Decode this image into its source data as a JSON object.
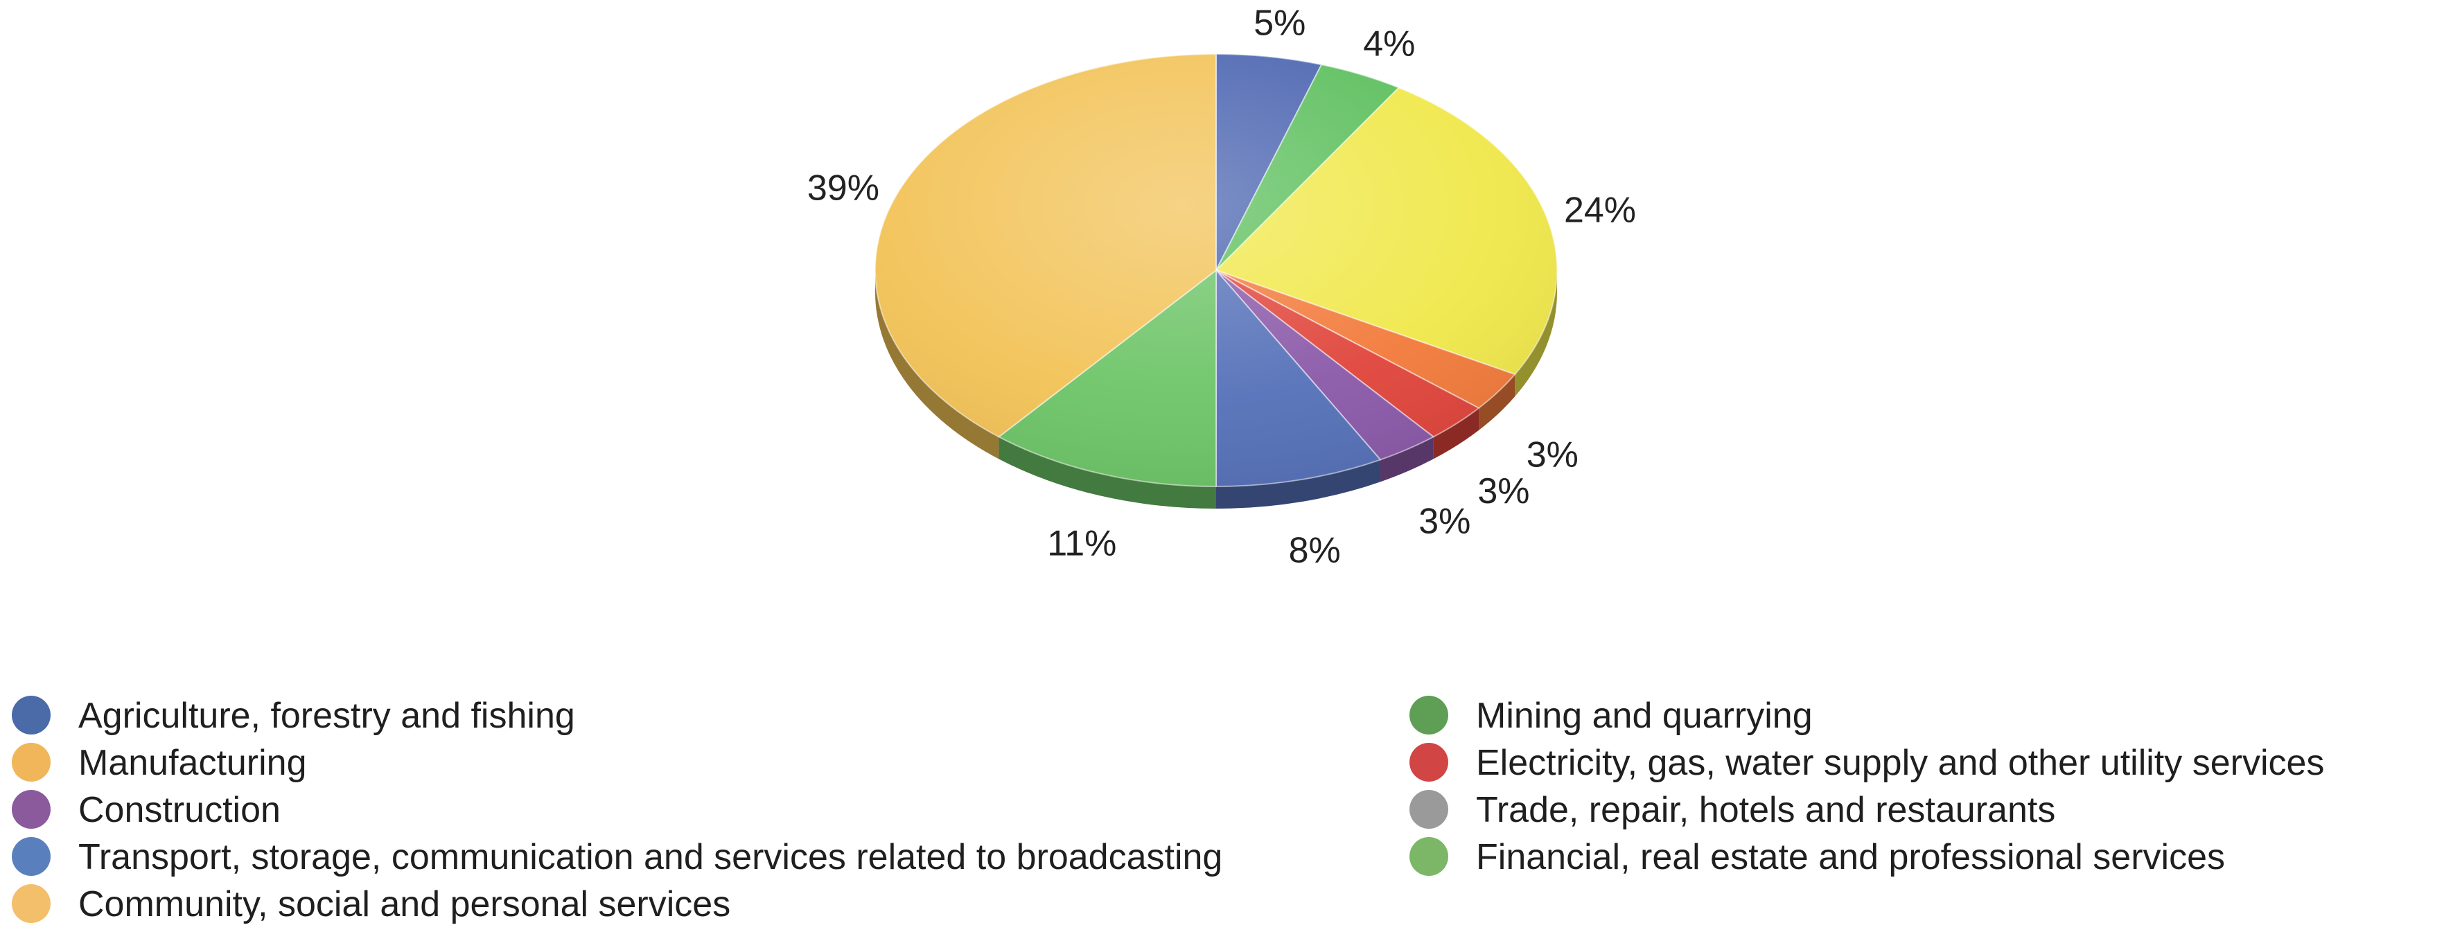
{
  "chart_data": {
    "type": "pie",
    "style": "3d",
    "title": "",
    "legend_placement": "bottom",
    "slices": [
      {
        "name": "Agriculture, forestry and fishing",
        "value": 5,
        "label": "5%",
        "color": "#4a64b0"
      },
      {
        "name": "Mining and quarrying",
        "value": 4,
        "label": "4%",
        "color": "#5cbf5c"
      },
      {
        "name": "Trade, repair, hotels and restaurants",
        "value": 24,
        "label": "24%",
        "color": "#f0e84a"
      },
      {
        "name": "Electricity, gas, water supply and other utility services",
        "value": 3,
        "label": "3%",
        "color": "#f27a3a"
      },
      {
        "name": "Electricity, gas, water supply and other utility services",
        "value": 3,
        "label": "3%",
        "color": "#e0443a"
      },
      {
        "name": "Construction",
        "value": 3,
        "label": "3%",
        "color": "#8a58a8"
      },
      {
        "name": "Transport, storage, communication and services related to broadcasting",
        "value": 8,
        "label": "8%",
        "color": "#5470b8"
      },
      {
        "name": "Financial, real estate and professional services",
        "value": 11,
        "label": "11%",
        "color": "#6cc466"
      },
      {
        "name": "Community, social and personal services",
        "value": 39,
        "label": "39%",
        "color": "#f2c256"
      }
    ],
    "legend": [
      {
        "label": "Agriculture, forestry and fishing",
        "color": "#4a6aa8"
      },
      {
        "label": "Manufacturing",
        "color": "#f0b659"
      },
      {
        "label": "Construction",
        "color": "#8a5a9c"
      },
      {
        "label": "Transport, storage, communication and services related to broadcasting",
        "color": "#5a7fbd"
      },
      {
        "label": "Community, social and personal services",
        "color": "#f3bf6a"
      },
      {
        "label": "Mining and quarrying",
        "color": "#5f9e55"
      },
      {
        "label": "Electricity, gas, water supply and other utility services",
        "color": "#d24545"
      },
      {
        "label": "Trade, repair, hotels and restaurants",
        "color": "#9a9a9a"
      },
      {
        "label": "Financial, real estate and professional services",
        "color": "#7bb767"
      }
    ]
  }
}
